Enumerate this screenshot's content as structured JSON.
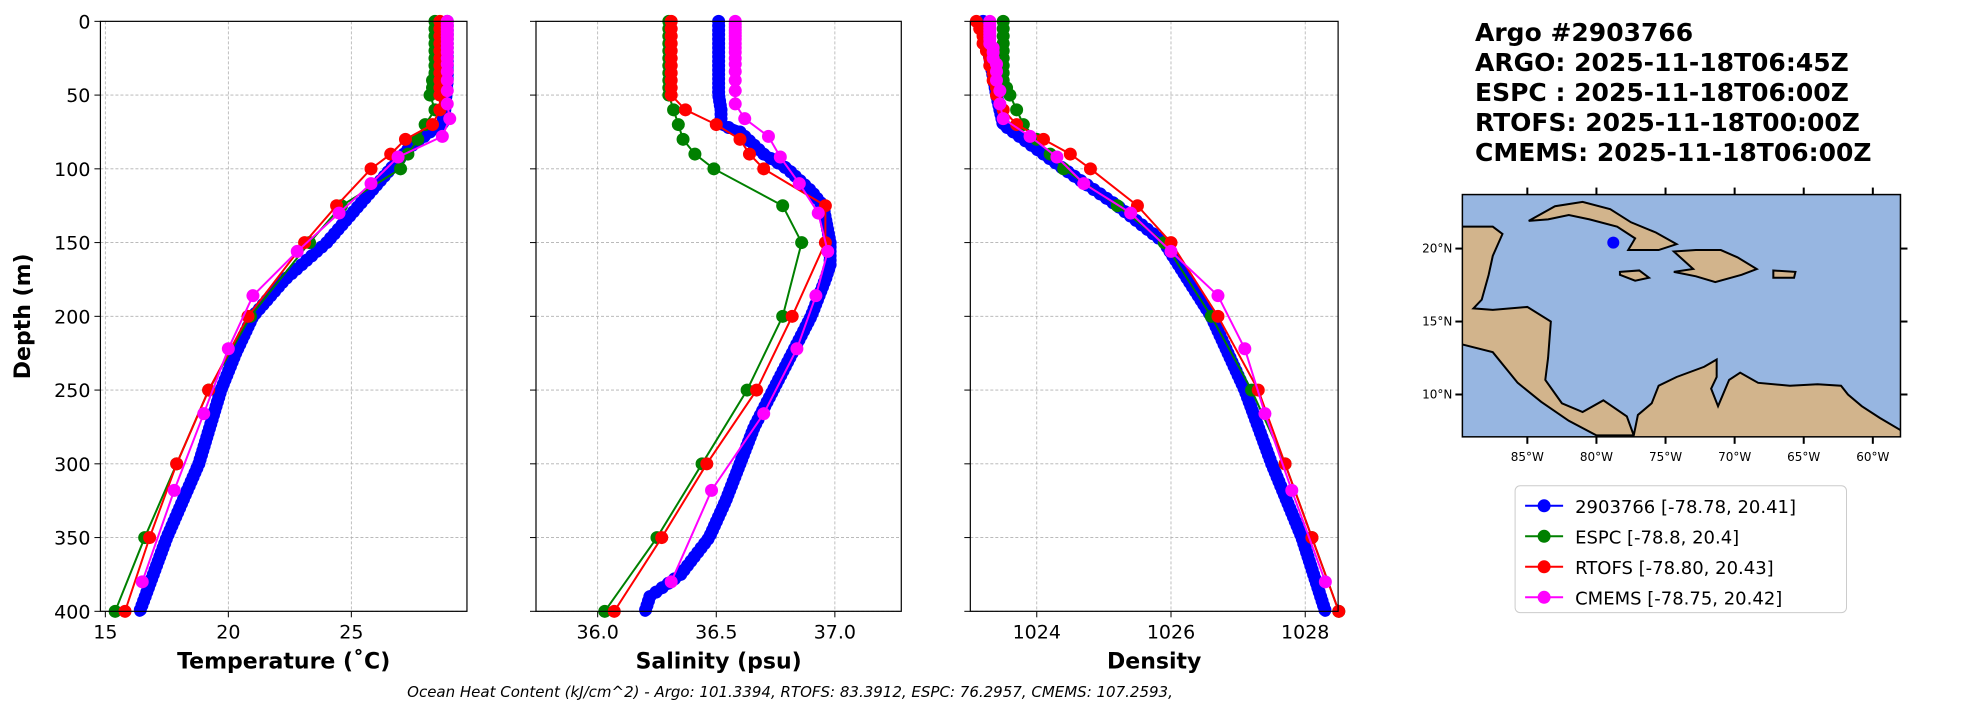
{
  "title_lines": [
    "Argo #2903766",
    "ARGO: 2025-11-18T06:45Z",
    "ESPC : 2025-11-18T06:00Z",
    "RTOFS: 2025-11-18T00:00Z",
    "CMEMS: 2025-11-18T06:00Z"
  ],
  "footnote": "Ocean Heat Content (kJ/cm^2) - Argo: 101.3394,  RTOFS: 83.3912,  ESPC: 76.2957,  CMEMS: 107.2593,",
  "colors": {
    "argo": "#0000ff",
    "espc": "#008000",
    "rtofs": "#ff0000",
    "cmems": "#ff00ff",
    "ocean": "#97b6e1",
    "land": "#d2b48c"
  },
  "legend": [
    {
      "key": "argo",
      "label": "2903766 [-78.78, 20.41]"
    },
    {
      "key": "espc",
      "label": "ESPC [-78.8, 20.4]"
    },
    {
      "key": "rtofs",
      "label": "RTOFS [-78.80, 20.43]"
    },
    {
      "key": "cmems",
      "label": "CMEMS [-78.75, 20.42]"
    }
  ],
  "map": {
    "lon_ticks": [
      -85,
      -80,
      -75,
      -70,
      -65,
      -60
    ],
    "lon_labels": [
      "85°W",
      "80°W",
      "75°W",
      "70°W",
      "65°W",
      "60°W"
    ],
    "lat_ticks": [
      20,
      15,
      10
    ],
    "lat_labels": [
      "20°N",
      "15°N",
      "10°N"
    ],
    "lon_range": [
      -89.7,
      -58
    ],
    "lat_range": [
      7.1,
      23.7
    ],
    "float_position": [
      -78.78,
      20.41
    ]
  },
  "chart_data": [
    {
      "type": "line",
      "xlabel": "Temperature (˚C)",
      "ylabel": "Depth (m)",
      "xlim": [
        14.8,
        29.7
      ],
      "ylim": [
        400,
        0
      ],
      "xticks": [
        15,
        20,
        25
      ],
      "xtick_labels": [
        "15",
        "20",
        "25"
      ],
      "yticks": [
        0,
        50,
        100,
        150,
        200,
        250,
        300,
        350,
        400
      ],
      "ytick_labels": [
        "0",
        "50",
        "100",
        "150",
        "200",
        "250",
        "300",
        "350",
        "400"
      ],
      "grid": true,
      "series": [
        {
          "key": "argo",
          "depth": [
            0,
            20,
            40,
            60,
            70,
            75,
            85,
            100,
            125,
            150,
            175,
            200,
            225,
            250,
            300,
            350,
            400
          ],
          "values": [
            28.9,
            28.9,
            28.9,
            28.8,
            28.7,
            28.2,
            27.4,
            26.6,
            25.3,
            24.0,
            22.3,
            21.0,
            20.3,
            19.7,
            18.8,
            17.5,
            16.4
          ]
        },
        {
          "key": "espc",
          "depth": [
            0,
            5,
            10,
            15,
            20,
            25,
            30,
            35,
            40,
            45,
            50,
            60,
            70,
            80,
            90,
            100,
            125,
            150,
            200,
            250,
            300,
            350,
            400
          ],
          "values": [
            28.4,
            28.4,
            28.4,
            28.4,
            28.4,
            28.4,
            28.4,
            28.4,
            28.3,
            28.3,
            28.2,
            28.4,
            28.0,
            27.7,
            27.3,
            27.0,
            24.6,
            23.3,
            20.9,
            19.2,
            17.9,
            16.6,
            15.4
          ]
        },
        {
          "key": "rtofs",
          "depth": [
            0,
            5,
            10,
            15,
            20,
            25,
            30,
            35,
            40,
            45,
            50,
            60,
            70,
            80,
            90,
            100,
            125,
            150,
            200,
            250,
            300,
            350,
            400
          ],
          "values": [
            28.6,
            28.6,
            28.6,
            28.6,
            28.6,
            28.6,
            28.6,
            28.6,
            28.6,
            28.6,
            28.6,
            28.6,
            28.3,
            27.2,
            26.6,
            25.8,
            24.4,
            23.1,
            20.8,
            19.2,
            17.9,
            16.8,
            15.8
          ]
        },
        {
          "key": "cmems",
          "depth": [
            0,
            2,
            4,
            6,
            8,
            10,
            12,
            15,
            18,
            21,
            25,
            29,
            34,
            40,
            47,
            56,
            66,
            78,
            92,
            110,
            130,
            156,
            186,
            222,
            266,
            318,
            380
          ],
          "values": [
            28.9,
            28.9,
            28.9,
            28.9,
            28.9,
            28.9,
            28.9,
            28.9,
            28.9,
            28.9,
            28.9,
            28.9,
            28.9,
            28.9,
            28.9,
            28.9,
            29.0,
            28.7,
            26.9,
            25.8,
            24.5,
            22.8,
            21.0,
            20.0,
            19.0,
            17.8,
            16.5
          ]
        }
      ]
    },
    {
      "type": "line",
      "xlabel": "Salinity (psu)",
      "ylabel": "",
      "xlim": [
        35.74,
        37.28
      ],
      "ylim": [
        400,
        0
      ],
      "xticks": [
        36.0,
        36.5,
        37.0
      ],
      "xtick_labels": [
        "36.0",
        "36.5",
        "37.0"
      ],
      "grid": true,
      "series": [
        {
          "key": "argo",
          "depth": [
            0,
            50,
            60,
            70,
            75,
            90,
            100,
            115,
            125,
            150,
            165,
            175,
            200,
            225,
            250,
            275,
            300,
            325,
            350,
            375,
            390,
            400
          ],
          "values": [
            36.51,
            36.51,
            36.52,
            36.52,
            36.6,
            36.7,
            36.8,
            36.9,
            36.95,
            36.98,
            36.98,
            36.96,
            36.9,
            36.82,
            36.74,
            36.66,
            36.6,
            36.54,
            36.47,
            36.35,
            36.22,
            36.2
          ]
        },
        {
          "key": "espc",
          "depth": [
            0,
            5,
            10,
            15,
            20,
            25,
            30,
            35,
            40,
            45,
            50,
            60,
            70,
            80,
            90,
            100,
            125,
            150,
            200,
            250,
            300,
            350,
            400
          ],
          "values": [
            36.3,
            36.3,
            36.3,
            36.3,
            36.3,
            36.3,
            36.3,
            36.3,
            36.3,
            36.3,
            36.3,
            36.32,
            36.34,
            36.36,
            36.41,
            36.49,
            36.78,
            36.86,
            36.78,
            36.63,
            36.44,
            36.25,
            36.03
          ]
        },
        {
          "key": "rtofs",
          "depth": [
            0,
            5,
            10,
            15,
            20,
            25,
            30,
            35,
            40,
            45,
            50,
            60,
            70,
            80,
            90,
            100,
            125,
            150,
            200,
            250,
            300,
            350,
            400
          ],
          "values": [
            36.31,
            36.31,
            36.31,
            36.31,
            36.31,
            36.31,
            36.31,
            36.31,
            36.31,
            36.31,
            36.31,
            36.37,
            36.5,
            36.6,
            36.64,
            36.7,
            36.96,
            36.96,
            36.82,
            36.67,
            36.46,
            36.27,
            36.07
          ]
        },
        {
          "key": "cmems",
          "depth": [
            0,
            2,
            4,
            6,
            8,
            10,
            12,
            15,
            18,
            21,
            25,
            29,
            34,
            40,
            47,
            56,
            66,
            78,
            92,
            110,
            130,
            156,
            186,
            222,
            266,
            318,
            380
          ],
          "values": [
            36.58,
            36.58,
            36.58,
            36.58,
            36.58,
            36.58,
            36.58,
            36.58,
            36.58,
            36.58,
            36.58,
            36.58,
            36.58,
            36.58,
            36.58,
            36.58,
            36.62,
            36.72,
            36.77,
            36.85,
            36.93,
            36.97,
            36.92,
            36.84,
            36.7,
            36.48,
            36.31
          ]
        }
      ]
    },
    {
      "type": "line",
      "xlabel": "Density",
      "ylabel": "",
      "xlim": [
        1023.01,
        1028.49
      ],
      "ylim": [
        400,
        0
      ],
      "xticks": [
        1024,
        1026,
        1028
      ],
      "xtick_labels": [
        "1024",
        "1026",
        "1028"
      ],
      "grid": true,
      "series": [
        {
          "key": "argo",
          "depth": [
            0,
            50,
            70,
            100,
            125,
            150,
            200,
            250,
            300,
            350,
            400
          ],
          "values": [
            1023.2,
            1023.4,
            1023.5,
            1024.4,
            1025.2,
            1025.9,
            1026.6,
            1027.1,
            1027.5,
            1027.95,
            1028.3
          ]
        },
        {
          "key": "espc",
          "depth": [
            0,
            5,
            10,
            15,
            20,
            25,
            30,
            35,
            40,
            45,
            50,
            60,
            70,
            80,
            90,
            100,
            125,
            150,
            200,
            250,
            300,
            350,
            400
          ],
          "values": [
            1023.5,
            1023.5,
            1023.5,
            1023.5,
            1023.5,
            1023.5,
            1023.5,
            1023.5,
            1023.5,
            1023.55,
            1023.6,
            1023.7,
            1023.8,
            1024.0,
            1024.2,
            1024.4,
            1025.2,
            1025.9,
            1026.6,
            1027.2,
            1027.7,
            1028.1,
            1028.5
          ]
        },
        {
          "key": "rtofs",
          "depth": [
            0,
            5,
            10,
            15,
            20,
            25,
            30,
            35,
            40,
            45,
            50,
            60,
            70,
            80,
            90,
            100,
            125,
            150,
            200,
            250,
            300,
            350,
            400
          ],
          "values": [
            1023.1,
            1023.15,
            1023.2,
            1023.2,
            1023.25,
            1023.3,
            1023.3,
            1023.35,
            1023.35,
            1023.4,
            1023.4,
            1023.5,
            1023.7,
            1024.1,
            1024.5,
            1024.8,
            1025.5,
            1026.0,
            1026.7,
            1027.3,
            1027.7,
            1028.1,
            1028.5
          ]
        },
        {
          "key": "cmems",
          "depth": [
            0,
            2,
            4,
            6,
            8,
            10,
            12,
            15,
            18,
            21,
            25,
            29,
            34,
            40,
            47,
            56,
            66,
            78,
            92,
            110,
            130,
            156,
            186,
            222,
            266,
            318,
            380
          ],
          "values": [
            1023.3,
            1023.3,
            1023.3,
            1023.3,
            1023.3,
            1023.3,
            1023.3,
            1023.3,
            1023.35,
            1023.35,
            1023.35,
            1023.4,
            1023.4,
            1023.4,
            1023.45,
            1023.45,
            1023.5,
            1023.9,
            1024.3,
            1024.7,
            1025.4,
            1026.0,
            1026.7,
            1027.1,
            1027.4,
            1027.8,
            1028.3
          ]
        }
      ]
    }
  ]
}
